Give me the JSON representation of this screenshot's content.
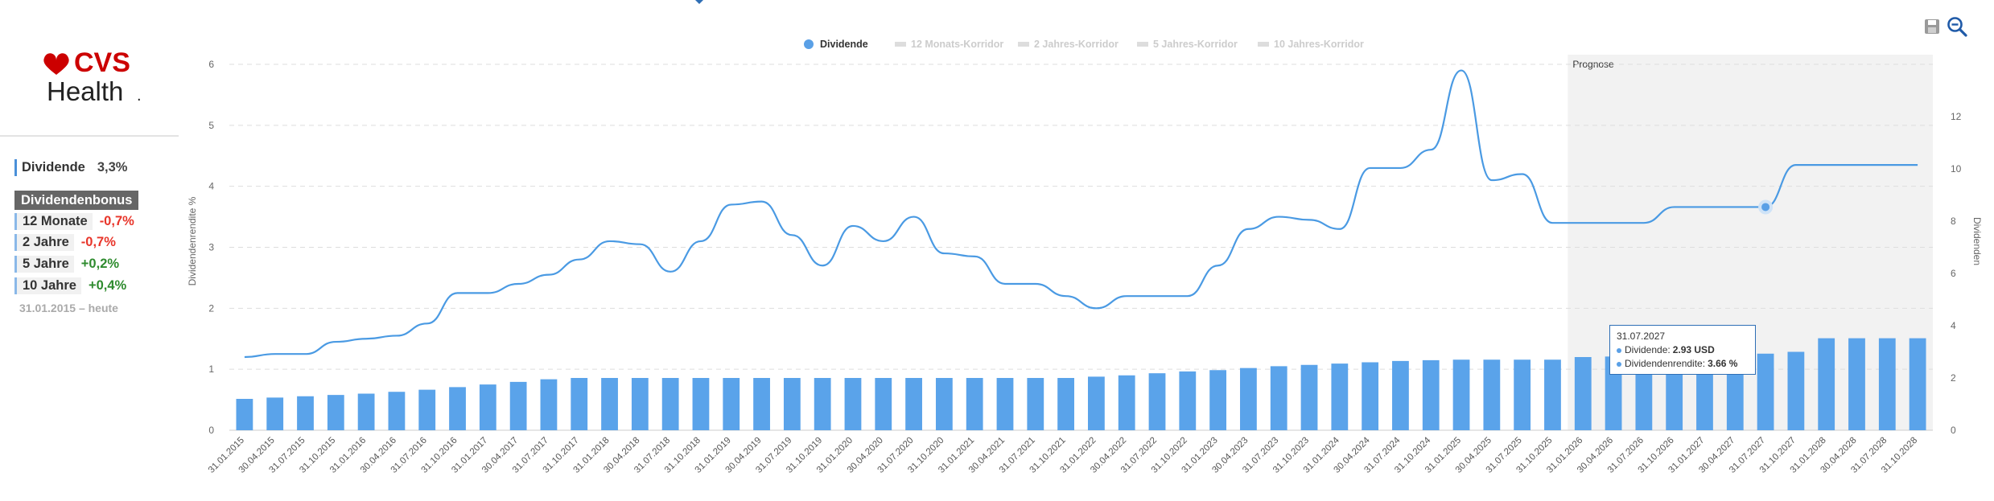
{
  "company": {
    "logo_text_top": "CVS",
    "logo_text_bottom": "Health",
    "trademark": "."
  },
  "summary": {
    "label": "Dividende",
    "value": "3,3%"
  },
  "bonus": {
    "title": "Dividendenbonus",
    "rows": [
      {
        "label": "12 Monate",
        "value": "-0,7%",
        "sign": "neg"
      },
      {
        "label": "2 Jahre",
        "value": "-0,7%",
        "sign": "neg"
      },
      {
        "label": "5 Jahre",
        "value": "+0,2%",
        "sign": "pos"
      },
      {
        "label": "10 Jahre",
        "value": "+0,4%",
        "sign": "pos"
      }
    ],
    "period": "31.01.2015 – heute"
  },
  "toolbar": {
    "save_icon": "save-icon",
    "zoom_icon": "zoom-out-icon"
  },
  "tooltip": {
    "date": "31.07.2027",
    "dividend_label": "Dividende:",
    "dividend_value": "2.93 USD",
    "yield_label": "Dividendenrendite:",
    "yield_value": "3.66 %"
  },
  "colors": {
    "accent": "#4a90d9",
    "bar": "#5aa3ea",
    "line": "#4a9ae3",
    "forecast_bg": "#f2f2f2",
    "negative": "#e8352a",
    "positive": "#2e8b2e"
  },
  "chart_data": {
    "type": "line",
    "legend": [
      "Dividende",
      "12 Monats-Korridor",
      "2 Jahres-Korridor",
      "5 Jahres-Korridor",
      "10 Jahres-Korridor"
    ],
    "legend_active": [
      true,
      false,
      false,
      false,
      false
    ],
    "legend_position": "top-center",
    "forecast_label": "Prognose",
    "forecast_start": "31.01.2026",
    "ylabel_left": "Dividendenrendite %",
    "ylabel_right": "Dividenden",
    "ylim_left": [
      0,
      6
    ],
    "ylim_right": [
      0,
      14
    ],
    "yticks_left": [
      0,
      1,
      2,
      3,
      4,
      5,
      6
    ],
    "yticks_right": [
      0,
      2,
      4,
      6,
      8,
      10,
      12
    ],
    "x_labels": [
      "31.01.2015",
      "30.04.2015",
      "31.07.2015",
      "31.10.2015",
      "31.01.2016",
      "30.04.2016",
      "31.07.2016",
      "31.10.2016",
      "31.01.2017",
      "30.04.2017",
      "31.07.2017",
      "31.10.2017",
      "31.01.2018",
      "30.04.2018",
      "31.07.2018",
      "31.10.2018",
      "31.01.2019",
      "30.04.2019",
      "31.07.2019",
      "31.10.2019",
      "31.01.2020",
      "30.04.2020",
      "31.07.2020",
      "31.10.2020",
      "31.01.2021",
      "30.04.2021",
      "31.07.2021",
      "31.10.2021",
      "31.01.2022",
      "30.04.2022",
      "31.07.2022",
      "31.10.2022",
      "31.01.2023",
      "30.04.2023",
      "31.07.2023",
      "31.10.2023",
      "31.01.2024",
      "30.04.2024",
      "31.07.2024",
      "31.10.2024",
      "31.01.2025",
      "30.04.2025",
      "31.07.2025",
      "31.10.2025",
      "31.01.2026",
      "30.04.2026",
      "31.07.2026",
      "31.10.2026",
      "31.01.2027",
      "30.04.2027",
      "31.07.2027",
      "31.10.2027",
      "31.01.2028",
      "30.04.2028",
      "31.07.2028",
      "31.10.2028"
    ],
    "series": [
      {
        "name": "Dividende",
        "axis": "right",
        "kind": "bar",
        "values": [
          1.2,
          1.25,
          1.3,
          1.35,
          1.4,
          1.47,
          1.55,
          1.65,
          1.75,
          1.85,
          1.95,
          2.0,
          2.0,
          2.0,
          2.0,
          2.0,
          2.0,
          2.0,
          2.0,
          2.0,
          2.0,
          2.0,
          2.0,
          2.0,
          2.0,
          2.0,
          2.0,
          2.0,
          2.05,
          2.1,
          2.18,
          2.25,
          2.3,
          2.38,
          2.45,
          2.5,
          2.55,
          2.6,
          2.65,
          2.68,
          2.7,
          2.7,
          2.7,
          2.7,
          2.8,
          2.82,
          2.85,
          2.9,
          2.93,
          2.93,
          2.93,
          3.0,
          3.52,
          3.52,
          3.52,
          3.52
        ]
      },
      {
        "name": "Dividendenrendite",
        "axis": "left",
        "kind": "line",
        "values": [
          1.2,
          1.25,
          1.25,
          1.45,
          1.5,
          1.55,
          1.75,
          2.25,
          2.25,
          2.4,
          2.55,
          2.8,
          3.1,
          3.05,
          2.6,
          3.1,
          3.7,
          3.75,
          3.2,
          2.7,
          3.35,
          3.1,
          3.5,
          2.9,
          2.85,
          2.4,
          2.4,
          2.2,
          2.0,
          2.2,
          2.2,
          2.2,
          2.7,
          3.3,
          3.5,
          3.45,
          3.3,
          4.3,
          4.3,
          4.6,
          5.9,
          4.1,
          4.2,
          3.4,
          3.4,
          3.4,
          3.4,
          3.66,
          3.66,
          3.66,
          3.66,
          4.35,
          4.35,
          4.35,
          4.35,
          4.35
        ]
      }
    ],
    "highlight_point": {
      "x": "31.07.2027",
      "dividend": 2.93,
      "yield": 3.66
    }
  }
}
